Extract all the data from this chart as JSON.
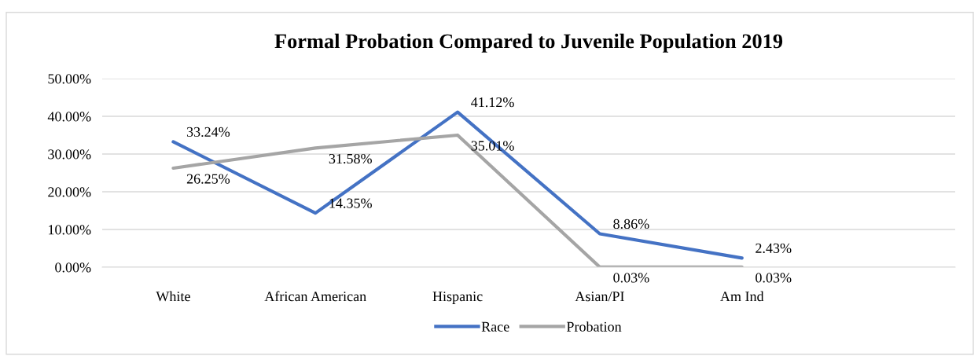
{
  "chart_data": {
    "type": "line",
    "title": "Formal Probation Compared to Juvenile Population 2019",
    "categories": [
      "White",
      "African American",
      "Hispanic",
      "Asian/PI",
      "Am Ind",
      null
    ],
    "series": [
      {
        "name": "Race",
        "color": "#4472c4",
        "values": [
          33.24,
          14.35,
          41.12,
          8.86,
          2.43,
          null
        ],
        "value_labels": [
          "33.24%",
          "14.35%",
          "41.12%",
          "8.86%",
          "2.43%",
          null
        ]
      },
      {
        "name": "Probation",
        "color": "#a5a5a5",
        "values": [
          26.25,
          31.58,
          35.01,
          0.03,
          0.03,
          null
        ],
        "value_labels": [
          "26.25%",
          "31.58%",
          "35.01%",
          "0.03%",
          "0.03%",
          null
        ]
      }
    ],
    "ylim": [
      0,
      50
    ],
    "yticks": [
      {
        "value": 0,
        "label": "0.00%"
      },
      {
        "value": 10,
        "label": "10.00%"
      },
      {
        "value": 20,
        "label": "20.00%"
      },
      {
        "value": 30,
        "label": "30.00%"
      },
      {
        "value": 40,
        "label": "40.00%"
      },
      {
        "value": 50,
        "label": "50.00%"
      }
    ],
    "grid": "y",
    "legend": "bottom",
    "marker": "none",
    "line_style": "solid"
  }
}
